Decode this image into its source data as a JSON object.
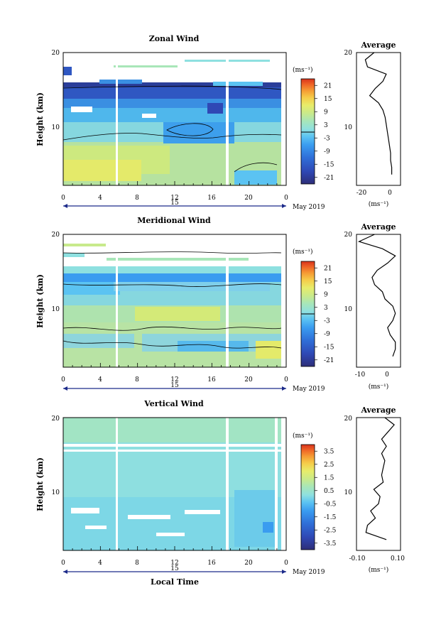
{
  "date_label": "May 2019",
  "day_label": "15",
  "xlabel": "Local Time",
  "units_label": "(ms⁻¹)",
  "panels": [
    {
      "title": "Zonal Wind",
      "ylabel": "Height (km)",
      "cbar_ticks": [
        "21",
        "15",
        "9",
        "3",
        "-3",
        "-9",
        "-15",
        "-21"
      ],
      "cbar_min": -24,
      "cbar_max": 24,
      "profile_title": "Average",
      "profile_xticks": [
        "-20",
        "0"
      ],
      "profile_xlim": [
        -30,
        10
      ],
      "profile_xlabel": "(ms⁻¹)"
    },
    {
      "title": "Meridional Wind",
      "ylabel": "Height (km)",
      "cbar_ticks": [
        "21",
        "15",
        "9",
        "3",
        "-3",
        "-9",
        "-15",
        "-21"
      ],
      "cbar_min": -24,
      "cbar_max": 24,
      "profile_title": "Average",
      "profile_xticks": [
        "-10",
        "0"
      ],
      "profile_xlim": [
        -13,
        4
      ],
      "profile_xlabel": "(ms⁻¹)"
    },
    {
      "title": "Vertical Wind",
      "ylabel": "Height (km)",
      "cbar_ticks": [
        "3.5",
        "2.5",
        "1.5",
        "0.5",
        "-0.5",
        "-1.5",
        "-2.5",
        "-3.5"
      ],
      "cbar_min": -4,
      "cbar_max": 4,
      "profile_title": "Average",
      "profile_xticks": [
        "-0.10",
        "0.10"
      ],
      "profile_xlim": [
        -0.14,
        0.14
      ],
      "profile_xlabel": "(ms⁻¹)"
    }
  ],
  "chart_data": {
    "type": "heatmap",
    "x_ticks": [
      "0",
      "4",
      "8",
      "12",
      "16",
      "20",
      "0"
    ],
    "xlim": [
      0,
      24
    ],
    "y_ticks": [
      "10",
      "20"
    ],
    "ylim": [
      1.5,
      20
    ],
    "colorbar_colors": [
      "#2e2e78",
      "#2f48b5",
      "#2f6fd8",
      "#3a9cf0",
      "#5bc3f2",
      "#8ee0e0",
      "#a8e6b8",
      "#c8ea8c",
      "#e8ec6a",
      "#f5cd4a",
      "#f59a34",
      "#ee6226",
      "#d8331c"
    ],
    "series": [
      {
        "name": "Zonal Wind",
        "heights_km": [
          3,
          4,
          5,
          6,
          7,
          8,
          9,
          10,
          11,
          12,
          13,
          14,
          15,
          16,
          17,
          18,
          19,
          20
        ],
        "average_ms": [
          2,
          2,
          1,
          1,
          0,
          -1,
          -2,
          -3,
          -4,
          -6,
          -10,
          -18,
          -13,
          -6,
          -3,
          -20,
          -22,
          -14
        ],
        "time_sections": [
          {
            "time_h": 1,
            "wind_ms": [
              8,
              7,
              7,
              6,
              5,
              4,
              2,
              -2,
              -5,
              -8,
              -13,
              -20,
              -22,
              null,
              null,
              null,
              null,
              null
            ]
          },
          {
            "time_h": 8,
            "wind_ms": [
              7,
              7,
              6,
              5,
              4,
              2,
              0,
              -4,
              -6,
              -9,
              -14,
              -21,
              -21,
              null,
              null,
              null,
              null,
              null
            ]
          },
          {
            "time_h": 14,
            "wind_ms": [
              6,
              6,
              5,
              5,
              3,
              1,
              -2,
              -6,
              -7,
              -10,
              -15,
              -22,
              -20,
              null,
              null,
              null,
              null,
              null
            ]
          },
          {
            "time_h": 20,
            "wind_ms": [
              4,
              3,
              3,
              2,
              0,
              -2,
              -5,
              -8,
              -8,
              -12,
              -16,
              -22,
              -18,
              null,
              null,
              null,
              null,
              null
            ]
          }
        ]
      },
      {
        "name": "Meridional Wind",
        "heights_km": [
          3,
          4,
          5,
          6,
          7,
          8,
          9,
          10,
          11,
          12,
          13,
          14,
          15,
          16,
          17,
          18,
          19,
          20
        ],
        "average_ms": [
          1,
          2,
          2,
          0,
          -1,
          1,
          2,
          1,
          -2,
          -3,
          -6,
          -7,
          -5,
          -1,
          2,
          -3,
          -12,
          -6
        ],
        "time_sections": [
          {
            "time_h": 1,
            "wind_ms": [
              1,
              2,
              2,
              0,
              -2,
              2,
              3,
              2,
              -3,
              -4,
              -6,
              -8,
              -5,
              -2,
              null,
              null,
              null,
              null
            ]
          },
          {
            "time_h": 8,
            "wind_ms": [
              2,
              2,
              1,
              -1,
              -1,
              3,
              5,
              3,
              -2,
              -3,
              -7,
              -8,
              -6,
              -1,
              null,
              null,
              null,
              null
            ]
          },
          {
            "time_h": 14,
            "wind_ms": [
              1,
              1,
              0,
              -2,
              -3,
              2,
              6,
              4,
              -2,
              -4,
              -6,
              -7,
              -5,
              -1,
              null,
              null,
              null,
              null
            ]
          },
          {
            "time_h": 20,
            "wind_ms": [
              3,
              2,
              0,
              -3,
              -3,
              0,
              2,
              1,
              -3,
              -5,
              -8,
              -9,
              -6,
              -2,
              null,
              null,
              null,
              null
            ]
          }
        ]
      },
      {
        "name": "Vertical Wind",
        "heights_km": [
          3,
          4,
          5,
          6,
          7,
          8,
          9,
          10,
          11,
          12,
          13,
          14,
          15,
          16,
          17,
          18,
          19,
          20
        ],
        "average_ms": [
          0.05,
          -0.08,
          -0.07,
          -0.02,
          -0.05,
          0.0,
          0.01,
          -0.03,
          0.03,
          0.02,
          0.03,
          0.04,
          0.02,
          0.05,
          0.02,
          0.06,
          0.1,
          0.04
        ],
        "time_sections": [
          {
            "time_h": 1,
            "wind_ms": [
              0.2,
              0.0,
              -0.2,
              0.0,
              0.1,
              0.2,
              0.0,
              -0.1,
              0.1,
              0.0,
              0.2,
              0.1,
              -0.1,
              0.0,
              0.1,
              0.0,
              0.2,
              0.1
            ]
          },
          {
            "time_h": 8,
            "wind_ms": [
              0.0,
              -0.2,
              -0.3,
              0.0,
              0.0,
              0.1,
              0.1,
              0.0,
              0.2,
              0.1,
              0.1,
              0.0,
              0.0,
              0.2,
              0.0,
              0.1,
              0.1,
              0.0
            ]
          },
          {
            "time_h": 14,
            "wind_ms": [
              -0.1,
              -0.3,
              -0.2,
              -0.1,
              0.0,
              0.0,
              0.0,
              -0.1,
              0.0,
              0.1,
              0.0,
              0.1,
              0.1,
              0.0,
              0.1,
              0.2,
              0.0,
              0.1
            ]
          },
          {
            "time_h": 20,
            "wind_ms": [
              -0.6,
              -0.8,
              -0.4,
              -0.2,
              -0.1,
              0.0,
              0.1,
              0.0,
              0.1,
              0.0,
              0.1,
              0.0,
              0.1,
              0.1,
              0.0,
              0.1,
              0.1,
              0.0
            ]
          }
        ]
      }
    ]
  }
}
